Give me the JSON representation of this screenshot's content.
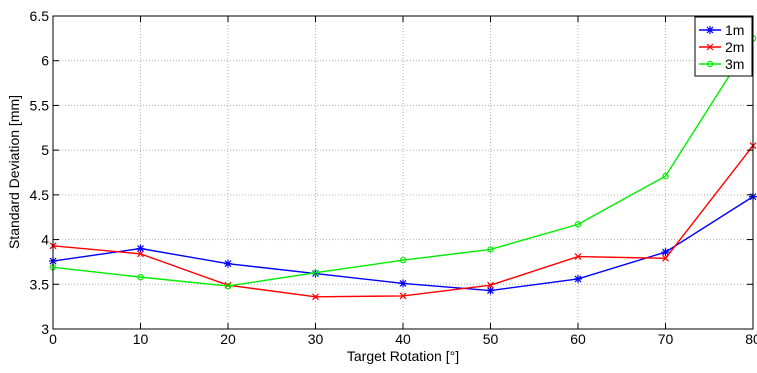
{
  "chart_data": {
    "type": "line",
    "xlabel": "Target Rotation [°]",
    "ylabel": "Standard Deviation [mm]",
    "xlim": [
      0,
      80
    ],
    "ylim": [
      3,
      6.5
    ],
    "x_ticks": [
      0,
      10,
      20,
      30,
      40,
      50,
      60,
      70,
      80
    ],
    "y_ticks": [
      3,
      3.5,
      4,
      4.5,
      5,
      5.5,
      6,
      6.5
    ],
    "x_tick_labels": [
      "0",
      "10",
      "20",
      "30",
      "40",
      "50",
      "60",
      "70",
      "80"
    ],
    "y_tick_labels": [
      "3",
      "3.5",
      "4",
      "4.5",
      "5",
      "5.5",
      "6",
      "6.5"
    ],
    "grid": true,
    "legend_position": "top-right",
    "x": [
      0,
      10,
      20,
      30,
      40,
      50,
      60,
      70,
      80
    ],
    "series": [
      {
        "name": "1m",
        "color": "#0000ff",
        "marker": "star",
        "values": [
          3.76,
          3.9,
          3.73,
          3.62,
          3.51,
          3.43,
          3.56,
          3.86,
          4.48
        ]
      },
      {
        "name": "2m",
        "color": "#ff0000",
        "marker": "cross",
        "values": [
          3.93,
          3.84,
          3.49,
          3.36,
          3.37,
          3.49,
          3.81,
          3.79,
          5.05
        ]
      },
      {
        "name": "3m",
        "color": "#00ee00",
        "marker": "circle",
        "values": [
          3.69,
          3.58,
          3.48,
          3.63,
          3.77,
          3.89,
          4.17,
          4.71,
          6.25
        ]
      }
    ]
  }
}
